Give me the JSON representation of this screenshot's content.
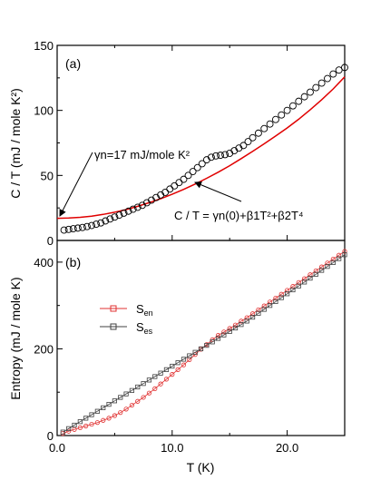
{
  "chart_data": [
    {
      "panel": "(a)",
      "type": "scatter",
      "ylabel": "C / T (mJ / mole K²)",
      "xlim": [
        0,
        25
      ],
      "ylim": [
        0,
        150
      ],
      "yticks": [
        0,
        50,
        100,
        150
      ],
      "colors": {
        "markers": "#000000",
        "fit_curve": "#e00000"
      },
      "annotations": {
        "gamma": "γn=17 mJ/mole K²",
        "gamma_arrow_target": [
          0,
          17
        ],
        "fit": "C / T = γn(0)+β1T²+β2T⁴",
        "fit_arrow_target": [
          12,
          48
        ]
      },
      "series": [
        {
          "kind": "markers",
          "x": [
            0.6,
            1,
            1.4,
            1.8,
            2.2,
            2.6,
            3,
            3.4,
            3.8,
            4.2,
            4.6,
            5,
            5.4,
            5.8,
            6.2,
            6.6,
            7,
            7.4,
            7.8,
            8.2,
            8.6,
            9,
            9.4,
            9.8,
            10.2,
            10.6,
            11,
            11.4,
            11.8,
            12.2,
            12.6,
            13,
            13.4,
            13.8,
            14.2,
            14.6,
            15,
            15.4,
            15.8,
            16.2,
            16.6,
            17,
            17.5,
            18,
            18.5,
            19,
            19.5,
            20,
            20.5,
            21,
            21.5,
            22,
            22.5,
            23,
            23.5,
            24,
            24.5,
            25
          ],
          "y": [
            8,
            8.5,
            9,
            9.5,
            10,
            10.7,
            11.5,
            12.5,
            13.5,
            15,
            16.5,
            18,
            19.5,
            21,
            22.5,
            24,
            25.5,
            27,
            29,
            31,
            33,
            35,
            37,
            39.5,
            42,
            44.5,
            47,
            50,
            53,
            56,
            59,
            62,
            64,
            65,
            65.5,
            66,
            67,
            69,
            71,
            73,
            76,
            79,
            82.5,
            86,
            89.5,
            93,
            96.5,
            100,
            103.5,
            107,
            110.5,
            114,
            117.5,
            121,
            124.5,
            128,
            131,
            133
          ]
        },
        {
          "kind": "fit-curve",
          "x": [
            0,
            1,
            2,
            3,
            4,
            5,
            6,
            7,
            8,
            9,
            10,
            11,
            12,
            13,
            14,
            15,
            16,
            17,
            18,
            19,
            20,
            21,
            22,
            23,
            24,
            25
          ],
          "y": [
            17,
            17.2,
            17.8,
            18.7,
            20,
            21.7,
            23.7,
            26.2,
            29,
            32.1,
            35.5,
            39.3,
            43.4,
            47.8,
            52.5,
            57.5,
            62.9,
            68.5,
            74.3,
            80.3,
            86.5,
            93.2,
            100.5,
            108.2,
            116.5,
            125.8
          ]
        }
      ]
    },
    {
      "panel": "(b)",
      "type": "scatter",
      "xlabel": "T (K)",
      "ylabel": "Entropy (mJ / mole K)",
      "xlim": [
        0,
        25
      ],
      "ylim": [
        0,
        450
      ],
      "xticks": [
        0,
        10,
        20
      ],
      "xticklabels": [
        "0.0",
        "10.0",
        "20.0"
      ],
      "yticks": [
        0,
        200,
        400
      ],
      "legend": {
        "position": "upper-left"
      },
      "series": [
        {
          "name": "Sen",
          "color": "#e03030",
          "x": [
            0.5,
            1,
            1.5,
            2,
            2.5,
            3,
            3.5,
            4,
            4.5,
            5,
            5.5,
            6,
            6.5,
            7,
            7.5,
            8,
            8.5,
            9,
            9.5,
            10,
            10.5,
            11,
            11.5,
            12,
            12.5,
            13,
            13.5,
            14,
            14.5,
            15,
            15.5,
            16,
            16.5,
            17,
            17.5,
            18,
            18.5,
            19,
            19.5,
            20,
            20.5,
            21,
            21.5,
            22,
            22.5,
            23,
            23.5,
            24,
            24.5,
            25
          ],
          "y": [
            5,
            10,
            14,
            18,
            22,
            26,
            30,
            35,
            40,
            46,
            53,
            61,
            70,
            79,
            88,
            98,
            108,
            119,
            130,
            141,
            152,
            163,
            175,
            187,
            199,
            210,
            221,
            231,
            239,
            247,
            255,
            264,
            272,
            281,
            290,
            299,
            308,
            317,
            326,
            335,
            344,
            353,
            362,
            371,
            380,
            389,
            398,
            407,
            416,
            425
          ]
        },
        {
          "name": "Ses",
          "color": "#404040",
          "x": [
            0.5,
            1,
            1.5,
            2,
            2.5,
            3,
            3.5,
            4,
            4.5,
            5,
            5.5,
            6,
            6.5,
            7,
            7.5,
            8,
            8.5,
            9,
            9.5,
            10,
            10.5,
            11,
            11.5,
            12,
            12.5,
            13,
            13.5,
            14,
            14.5,
            15,
            15.5,
            16,
            16.5,
            17,
            17.5,
            18,
            18.5,
            19,
            19.5,
            20,
            20.5,
            21,
            21.5,
            22,
            22.5,
            23,
            23.5,
            24,
            24.5,
            25
          ],
          "y": [
            8,
            16,
            24,
            32,
            40,
            48,
            56,
            64,
            72,
            80,
            88,
            96,
            104,
            112,
            120,
            128,
            136,
            144,
            152,
            160,
            168,
            176,
            184,
            192,
            200,
            208,
            216,
            224,
            232,
            240,
            248,
            256,
            264,
            273,
            282,
            291,
            300,
            309,
            318,
            327,
            336,
            345,
            354,
            363,
            372,
            381,
            390,
            399,
            408,
            417
          ]
        }
      ]
    }
  ]
}
